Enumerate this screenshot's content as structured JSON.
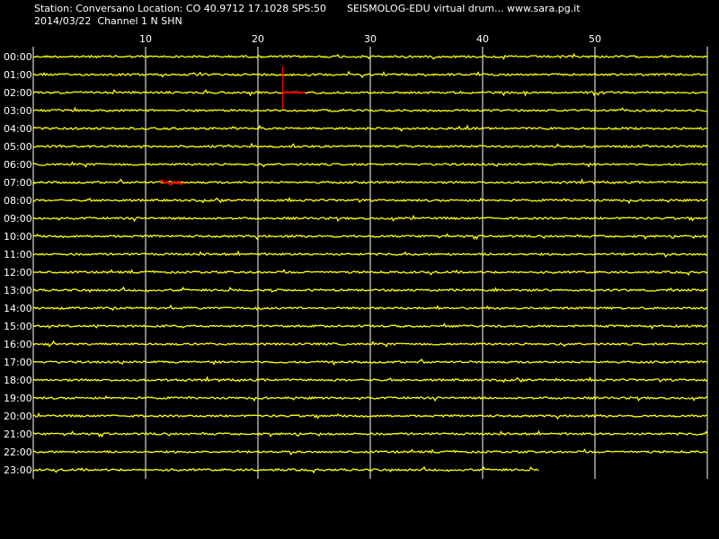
{
  "header": {
    "station_line": "Station: Conversano Location: CO 40.9712 17.1028 SPS:50",
    "date_line": "2014/03/22  Channel 1 N SHN",
    "program_line": "SEISMOLOG-EDU virtual drum... www.sara.pg.it"
  },
  "colors": {
    "background": "#000000",
    "trace": "#ffff00",
    "event_marker": "#ff0000",
    "grid": "#ffffff",
    "text": "#ffffff"
  },
  "chart_data": {
    "type": "line",
    "title": "",
    "xlabel": "",
    "ylabel": "",
    "x_unit_minutes_range": [
      0,
      60
    ],
    "x_ticks": [
      10,
      20,
      30,
      40,
      50
    ],
    "hours": [
      "00:00",
      "01:00",
      "02:00",
      "03:00",
      "04:00",
      "05:00",
      "06:00",
      "07:00",
      "08:00",
      "09:00",
      "10:00",
      "11:00",
      "12:00",
      "13:00",
      "14:00",
      "15:00",
      "16:00",
      "17:00",
      "18:00",
      "19:00",
      "20:00",
      "21:00",
      "22:00",
      "23:00"
    ],
    "last_line_end_minute": 45,
    "events": [
      {
        "hour": "02:00",
        "start_minute": 22.2,
        "end_minute": 24.2,
        "spike": true
      },
      {
        "hour": "07:00",
        "start_minute": 11.4,
        "end_minute": 13.4,
        "spike": false
      }
    ]
  }
}
